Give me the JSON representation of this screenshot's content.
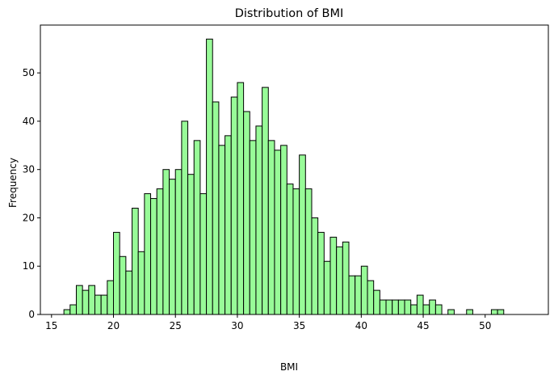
{
  "chart_data": {
    "type": "bar",
    "title": "Distribution of BMI",
    "xlabel": "BMI",
    "ylabel": "Frequency",
    "bar_color": "#98fb98",
    "edge_color": "#000000",
    "xlim": [
      14.1,
      55.1
    ],
    "ylim": [
      0,
      59.9
    ],
    "xticks": [
      15,
      20,
      25,
      30,
      35,
      40,
      45,
      50
    ],
    "yticks": [
      0,
      10,
      20,
      30,
      40,
      50
    ],
    "bin_start": 16.0,
    "bin_width": 0.5,
    "counts": [
      1,
      2,
      6,
      5,
      6,
      4,
      4,
      7,
      17,
      12,
      9,
      22,
      13,
      25,
      24,
      26,
      30,
      28,
      30,
      40,
      29,
      36,
      25,
      57,
      44,
      35,
      37,
      45,
      48,
      42,
      36,
      39,
      47,
      36,
      34,
      35,
      27,
      26,
      33,
      26,
      20,
      17,
      11,
      16,
      14,
      15,
      8,
      8,
      10,
      7,
      5,
      3,
      3,
      3,
      3,
      3,
      2,
      4,
      2,
      3,
      2,
      0,
      1,
      0,
      0,
      1,
      0,
      0,
      0,
      1,
      1
    ]
  }
}
